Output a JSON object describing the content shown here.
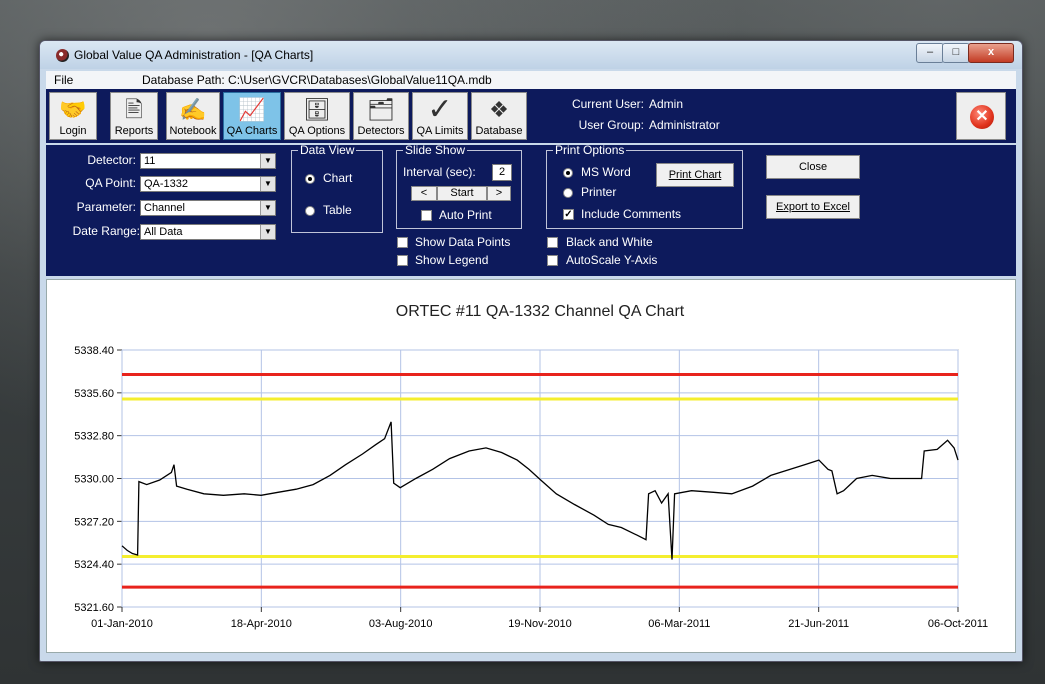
{
  "window": {
    "title": "Global Value QA Administration - [QA Charts]",
    "min_label": "–",
    "max_label": "□",
    "close_label": "x"
  },
  "menu": {
    "file": "File",
    "db_path": "Database Path: C:\\User\\GVCR\\Databases\\GlobalValue11QA.mdb"
  },
  "toolbar": {
    "buttons": [
      {
        "label": "Login",
        "icon": "handshake-icon",
        "glyph": "🤝"
      },
      {
        "label": "Reports",
        "icon": "report-icon",
        "glyph": "🖹"
      },
      {
        "label": "Notebook",
        "icon": "notebook-icon",
        "glyph": "✍"
      },
      {
        "label": "QA Charts",
        "icon": "chart-icon",
        "glyph": "📈"
      },
      {
        "label": "QA Options",
        "icon": "cabinet-icon",
        "glyph": "🗄"
      },
      {
        "label": "Detectors",
        "icon": "detectors-icon",
        "glyph": "🗂"
      },
      {
        "label": "QA Limits",
        "icon": "checkmark-icon",
        "glyph": "✓"
      },
      {
        "label": "Database",
        "icon": "database-icon",
        "glyph": "❖"
      }
    ],
    "current_user_label": "Current User:",
    "current_user": "Admin",
    "user_group_label": "User Group:",
    "user_group": "Administrator",
    "exit_glyph": "✕"
  },
  "controls": {
    "detector_label": "Detector:",
    "detector_value": "11",
    "qa_point_label": "QA Point:",
    "qa_point_value": "QA-1332",
    "parameter_label": "Parameter:",
    "parameter_value": "Channel",
    "date_range_label": "Date Range:",
    "date_range_value": "All Data",
    "data_view_legend": "Data View",
    "chart_option": "Chart",
    "table_option": "Table",
    "slide_show_legend": "Slide Show",
    "interval_label": "Interval (sec):",
    "interval_value": "2",
    "prev_label": "<",
    "start_label": "Start",
    "next_label": ">",
    "auto_print": "Auto Print",
    "show_data_points": "Show Data Points",
    "show_legend": "Show Legend",
    "print_options_legend": "Print Options",
    "ms_word": "MS Word",
    "printer": "Printer",
    "include_comments": "Include Comments",
    "print_chart": "Print Chart",
    "black_and_white": "Black and White",
    "autoscale": "AutoScale Y-Axis",
    "close": "Close",
    "export": "Export to Excel"
  },
  "colors": {
    "panel": "#0d1a5c",
    "limit_outer": "#e8231c",
    "limit_inner": "#f4ee2e",
    "line": "#000000",
    "grid": "#b3c3e6"
  },
  "chart_data": {
    "type": "line",
    "title": "ORTEC #11 QA-1332 Channel QA Chart",
    "xlabel": "",
    "ylabel": "",
    "ylim": [
      5321.6,
      5338.4
    ],
    "y_ticks": [
      "5338.40",
      "5335.60",
      "5332.80",
      "5330.00",
      "5327.20",
      "5324.40",
      "5321.60"
    ],
    "x_ticks": [
      "01-Jan-2010",
      "18-Apr-2010",
      "03-Aug-2010",
      "19-Nov-2010",
      "06-Mar-2011",
      "21-Jun-2011",
      "06-Oct-2011"
    ],
    "x_range": [
      "2010-01-01",
      "2011-10-06"
    ],
    "limits": {
      "upper_red": 5336.8,
      "upper_yellow": 5335.2,
      "lower_yellow": 5324.9,
      "lower_red": 5322.9
    },
    "series": [
      {
        "points": [
          [
            "2010-01-01",
            5325.6
          ],
          [
            "2010-01-05",
            5325.3
          ],
          [
            "2010-01-09",
            5325.1
          ],
          [
            "2010-01-13",
            5325.0
          ],
          [
            "2010-01-14",
            5329.8
          ],
          [
            "2010-01-20",
            5329.6
          ],
          [
            "2010-01-30",
            5329.9
          ],
          [
            "2010-02-08",
            5330.4
          ],
          [
            "2010-02-10",
            5330.9
          ],
          [
            "2010-02-12",
            5329.5
          ],
          [
            "2010-02-20",
            5329.3
          ],
          [
            "2010-03-05",
            5329.0
          ],
          [
            "2010-03-20",
            5328.9
          ],
          [
            "2010-04-05",
            5329.0
          ],
          [
            "2010-04-18",
            5328.9
          ],
          [
            "2010-05-01",
            5329.1
          ],
          [
            "2010-05-15",
            5329.3
          ],
          [
            "2010-05-28",
            5329.6
          ],
          [
            "2010-06-10",
            5330.2
          ],
          [
            "2010-06-22",
            5330.9
          ],
          [
            "2010-07-05",
            5331.6
          ],
          [
            "2010-07-15",
            5332.2
          ],
          [
            "2010-07-22",
            5332.6
          ],
          [
            "2010-07-27",
            5333.7
          ],
          [
            "2010-07-29",
            5329.7
          ],
          [
            "2010-08-03",
            5329.4
          ],
          [
            "2010-08-15",
            5330.0
          ],
          [
            "2010-08-28",
            5330.6
          ],
          [
            "2010-09-10",
            5331.3
          ],
          [
            "2010-09-25",
            5331.8
          ],
          [
            "2010-10-08",
            5332.0
          ],
          [
            "2010-10-20",
            5331.7
          ],
          [
            "2010-11-01",
            5331.2
          ],
          [
            "2010-11-10",
            5330.6
          ],
          [
            "2010-11-19",
            5329.9
          ],
          [
            "2010-12-01",
            5329.0
          ],
          [
            "2010-12-15",
            5328.3
          ],
          [
            "2010-12-30",
            5327.6
          ],
          [
            "2011-01-10",
            5327.0
          ],
          [
            "2011-01-20",
            5326.8
          ],
          [
            "2011-02-01",
            5326.3
          ],
          [
            "2011-02-08",
            5326.0
          ],
          [
            "2011-02-10",
            5329.0
          ],
          [
            "2011-02-15",
            5329.2
          ],
          [
            "2011-02-20",
            5328.4
          ],
          [
            "2011-02-25",
            5329.0
          ],
          [
            "2011-02-28",
            5324.7
          ],
          [
            "2011-03-02",
            5329.0
          ],
          [
            "2011-03-15",
            5329.2
          ],
          [
            "2011-04-01",
            5329.1
          ],
          [
            "2011-04-15",
            5329.0
          ],
          [
            "2011-05-01",
            5329.5
          ],
          [
            "2011-05-15",
            5330.2
          ],
          [
            "2011-05-30",
            5330.6
          ],
          [
            "2011-06-10",
            5330.9
          ],
          [
            "2011-06-21",
            5331.2
          ],
          [
            "2011-06-28",
            5330.6
          ],
          [
            "2011-07-01",
            5330.5
          ],
          [
            "2011-07-05",
            5329.0
          ],
          [
            "2011-07-10",
            5329.2
          ],
          [
            "2011-07-20",
            5330.0
          ],
          [
            "2011-08-01",
            5330.2
          ],
          [
            "2011-08-15",
            5330.0
          ],
          [
            "2011-08-30",
            5330.0
          ],
          [
            "2011-09-08",
            5330.0
          ],
          [
            "2011-09-10",
            5331.8
          ],
          [
            "2011-09-20",
            5331.9
          ],
          [
            "2011-09-28",
            5332.5
          ],
          [
            "2011-10-03",
            5332.0
          ],
          [
            "2011-10-06",
            5331.2
          ]
        ]
      }
    ],
    "grid": true
  }
}
